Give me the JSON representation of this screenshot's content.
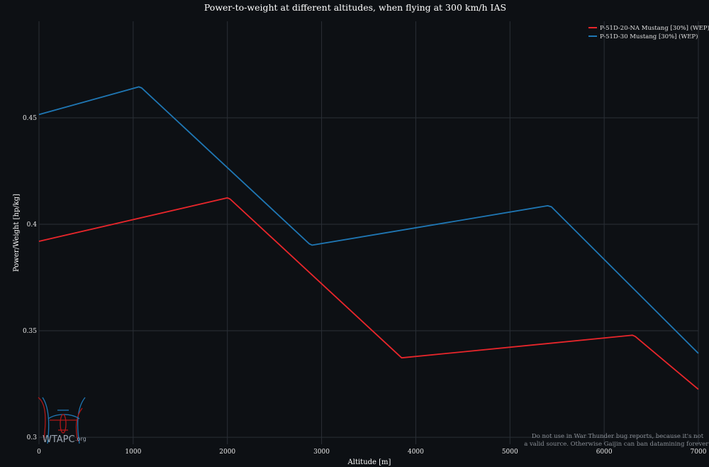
{
  "chart_data": {
    "type": "line",
    "title": "Power-to-weight at different altitudes, when flying at 300 km/h IAS",
    "xlabel": "Altitude [m]",
    "ylabel": "Power/Weight [hp/kg]",
    "xlim": [
      0,
      7000
    ],
    "ylim": [
      0.2967,
      0.4953
    ],
    "x_ticks": [
      0,
      1000,
      2000,
      3000,
      4000,
      5000,
      6000,
      7000
    ],
    "y_ticks": [
      0.3,
      0.35,
      0.4,
      0.45
    ],
    "x_tick_labels": [
      "0",
      "1000",
      "2000",
      "3000",
      "4000",
      "5000",
      "6000",
      "7000"
    ],
    "y_tick_labels": [
      "0.3",
      "0.35",
      "0.4",
      "0.45"
    ],
    "grid": true,
    "legend_position": "top-right",
    "series": [
      {
        "name": "P-51D-20-NA Mustang [30%] (WEP)",
        "color": "#e8262b",
        "x": [
          0,
          2000,
          2030,
          3850,
          6300,
          6330,
          7000
        ],
        "y": [
          0.392,
          0.4124,
          0.4118,
          0.3373,
          0.3479,
          0.3473,
          0.3225
        ]
      },
      {
        "name": "P-51D-30 Mustang [30%] (WEP)",
        "color": "#1f77b4",
        "x": [
          0,
          1060,
          1090,
          2870,
          2900,
          5400,
          5440,
          7000
        ],
        "y": [
          0.4515,
          0.4645,
          0.464,
          0.3908,
          0.3902,
          0.4087,
          0.4082,
          0.3394
        ]
      }
    ]
  },
  "watermark": {
    "logo_text": "WTAPC",
    "logo_suffix": ".org",
    "note_line1": "Do not use in War Thunder bug reports, because it's not",
    "note_line2": "a valid source. Otherwise Gaijin can ban datamining forever!"
  }
}
